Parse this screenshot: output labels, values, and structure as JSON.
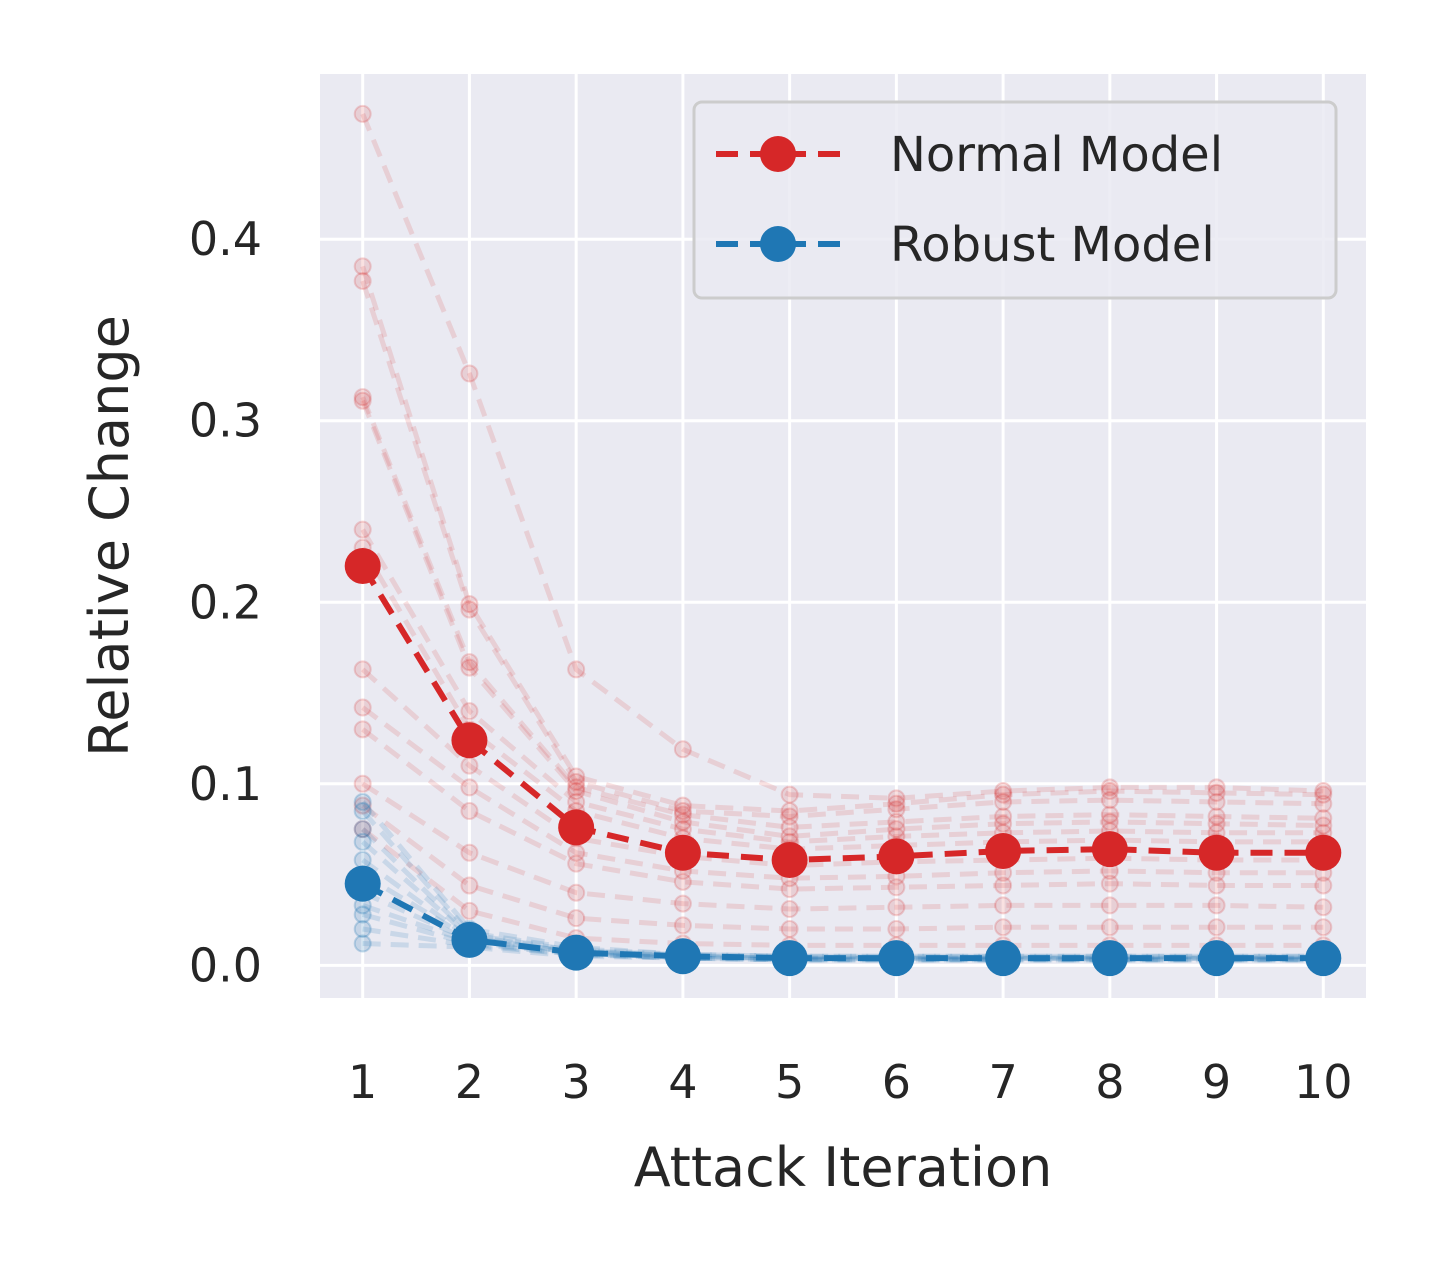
{
  "chart_data": {
    "type": "line",
    "xlabel": "Attack Iteration",
    "ylabel": "Relative Change",
    "x": [
      1,
      2,
      3,
      4,
      5,
      6,
      7,
      8,
      9,
      10
    ],
    "xlim": [
      0.6,
      10.4
    ],
    "ylim": [
      -0.018,
      0.491
    ],
    "yticks": [
      0.0,
      0.1,
      0.2,
      0.3,
      0.4
    ],
    "ytick_labels": [
      "0.0",
      "0.1",
      "0.2",
      "0.3",
      "0.4"
    ],
    "xtick_labels": [
      "1",
      "2",
      "3",
      "4",
      "5",
      "6",
      "7",
      "8",
      "9",
      "10"
    ],
    "grid": true,
    "legend_position": "top-right",
    "colors": {
      "background": "#eaeaf2",
      "grid": "#ffffff",
      "normal": "#d62728",
      "robust": "#1f77b4",
      "text": "#262626"
    },
    "series": [
      {
        "name": "Normal Model",
        "color": "#d62728",
        "style": "dashed",
        "marker": "circle",
        "values": [
          0.22,
          0.124,
          0.076,
          0.062,
          0.058,
          0.06,
          0.063,
          0.064,
          0.062,
          0.062
        ]
      },
      {
        "name": "Robust Model",
        "color": "#1f77b4",
        "style": "dashed",
        "marker": "circle",
        "values": [
          0.045,
          0.014,
          0.007,
          0.005,
          0.004,
          0.004,
          0.004,
          0.004,
          0.004,
          0.004
        ]
      }
    ],
    "background_runs": {
      "normal": [
        [
          0.469,
          0.326,
          0.163,
          0.119,
          0.094,
          0.092,
          0.096,
          0.098,
          0.098,
          0.096
        ],
        [
          0.385,
          0.199,
          0.104,
          0.088,
          0.085,
          0.089,
          0.094,
          0.096,
          0.095,
          0.094
        ],
        [
          0.377,
          0.196,
          0.101,
          0.085,
          0.082,
          0.086,
          0.09,
          0.091,
          0.09,
          0.089
        ],
        [
          0.313,
          0.167,
          0.098,
          0.083,
          0.076,
          0.079,
          0.082,
          0.083,
          0.082,
          0.081
        ],
        [
          0.311,
          0.164,
          0.096,
          0.079,
          0.071,
          0.075,
          0.078,
          0.079,
          0.078,
          0.077
        ],
        [
          0.24,
          0.14,
          0.09,
          0.075,
          0.068,
          0.071,
          0.073,
          0.074,
          0.073,
          0.073
        ],
        [
          0.23,
          0.13,
          0.085,
          0.07,
          0.064,
          0.066,
          0.068,
          0.069,
          0.068,
          0.068
        ],
        [
          0.163,
          0.11,
          0.07,
          0.06,
          0.055,
          0.057,
          0.058,
          0.059,
          0.058,
          0.058
        ],
        [
          0.142,
          0.098,
          0.062,
          0.052,
          0.048,
          0.049,
          0.051,
          0.052,
          0.051,
          0.051
        ],
        [
          0.13,
          0.085,
          0.056,
          0.046,
          0.042,
          0.043,
          0.044,
          0.045,
          0.044,
          0.044
        ],
        [
          0.1,
          0.062,
          0.04,
          0.034,
          0.031,
          0.032,
          0.033,
          0.033,
          0.033,
          0.032
        ],
        [
          0.088,
          0.044,
          0.026,
          0.022,
          0.02,
          0.02,
          0.021,
          0.021,
          0.021,
          0.021
        ],
        [
          0.075,
          0.03,
          0.015,
          0.012,
          0.011,
          0.011,
          0.011,
          0.011,
          0.011,
          0.011
        ]
      ],
      "robust": [
        [
          0.09,
          0.02,
          0.01,
          0.006,
          0.005,
          0.005,
          0.005,
          0.005,
          0.005,
          0.005
        ],
        [
          0.085,
          0.018,
          0.009,
          0.006,
          0.005,
          0.005,
          0.005,
          0.005,
          0.005,
          0.005
        ],
        [
          0.075,
          0.017,
          0.008,
          0.006,
          0.005,
          0.005,
          0.005,
          0.005,
          0.005,
          0.005
        ],
        [
          0.068,
          0.016,
          0.008,
          0.005,
          0.004,
          0.004,
          0.004,
          0.004,
          0.004,
          0.004
        ],
        [
          0.058,
          0.015,
          0.007,
          0.005,
          0.004,
          0.004,
          0.004,
          0.004,
          0.004,
          0.004
        ],
        [
          0.05,
          0.015,
          0.007,
          0.005,
          0.004,
          0.004,
          0.004,
          0.004,
          0.004,
          0.004
        ],
        [
          0.04,
          0.014,
          0.007,
          0.004,
          0.004,
          0.004,
          0.004,
          0.004,
          0.004,
          0.004
        ],
        [
          0.033,
          0.013,
          0.006,
          0.004,
          0.003,
          0.003,
          0.003,
          0.003,
          0.003,
          0.003
        ],
        [
          0.028,
          0.012,
          0.006,
          0.004,
          0.003,
          0.003,
          0.003,
          0.003,
          0.003,
          0.003
        ],
        [
          0.02,
          0.011,
          0.006,
          0.004,
          0.003,
          0.003,
          0.003,
          0.003,
          0.003,
          0.003
        ],
        [
          0.012,
          0.01,
          0.005,
          0.004,
          0.003,
          0.003,
          0.003,
          0.003,
          0.003,
          0.003
        ]
      ]
    }
  }
}
